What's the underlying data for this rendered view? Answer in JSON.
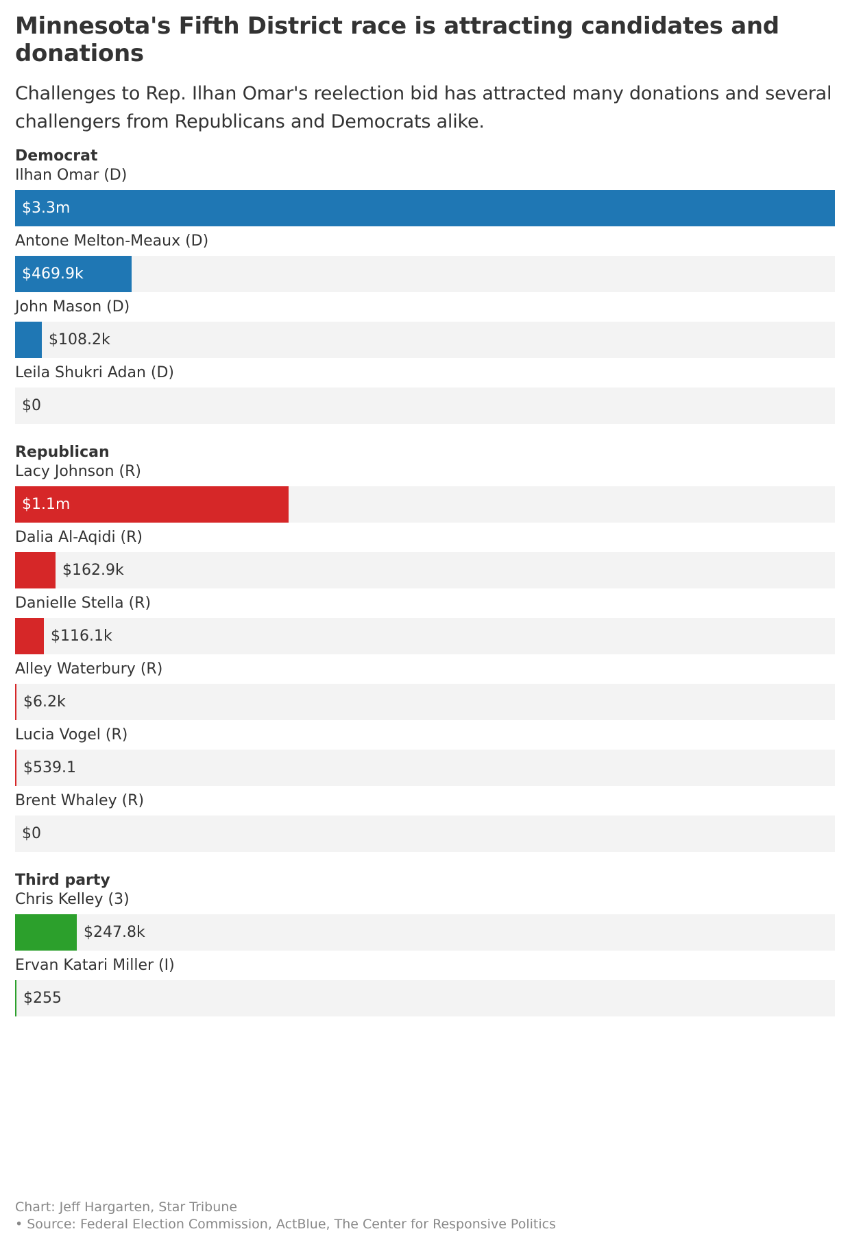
{
  "header": {
    "title": "Minnesota's Fifth District race is attracting candidates and donations",
    "subtitle": "Challenges to Rep. Ilhan Omar's reelection bid has attracted many donations and several challengers from Republicans and Democrats alike."
  },
  "colors": {
    "democrat": "#1f77b4",
    "republican": "#d62728",
    "third_party": "#2ca02c",
    "track": "#f3f3f3"
  },
  "chart_data": {
    "type": "bar",
    "orientation": "horizontal",
    "xlim": [
      0,
      3300000
    ],
    "groups": [
      {
        "name": "Democrat",
        "color_key": "democrat",
        "rows": [
          {
            "category": "Ilhan Omar (D)",
            "value": 3300000,
            "label": "$3.3m"
          },
          {
            "category": "Antone Melton-Meaux (D)",
            "value": 469900,
            "label": "$469.9k"
          },
          {
            "category": "John Mason (D)",
            "value": 108200,
            "label": "$108.2k"
          },
          {
            "category": "Leila Shukri Adan (D)",
            "value": 0,
            "label": "$0"
          }
        ]
      },
      {
        "name": "Republican",
        "color_key": "republican",
        "rows": [
          {
            "category": "Lacy Johnson (R)",
            "value": 1100000,
            "label": "$1.1m"
          },
          {
            "category": "Dalia Al-Aqidi (R)",
            "value": 162900,
            "label": "$162.9k"
          },
          {
            "category": "Danielle Stella (R)",
            "value": 116100,
            "label": "$116.1k"
          },
          {
            "category": "Alley Waterbury (R)",
            "value": 6200,
            "label": "$6.2k"
          },
          {
            "category": "Lucia Vogel (R)",
            "value": 539.1,
            "label": "$539.1"
          },
          {
            "category": "Brent Whaley (R)",
            "value": 0,
            "label": "$0"
          }
        ]
      },
      {
        "name": "Third party",
        "color_key": "third_party",
        "rows": [
          {
            "category": "Chris Kelley (3)",
            "value": 247800,
            "label": "$247.8k"
          },
          {
            "category": "Ervan Katari Miller (I)",
            "value": 255,
            "label": "$255"
          }
        ]
      }
    ]
  },
  "footer": {
    "credit": "Chart: Jeff Hargarten, Star Tribune",
    "source": "• Source: Federal Election Commission, ActBlue, The Center for Responsive Politics"
  }
}
